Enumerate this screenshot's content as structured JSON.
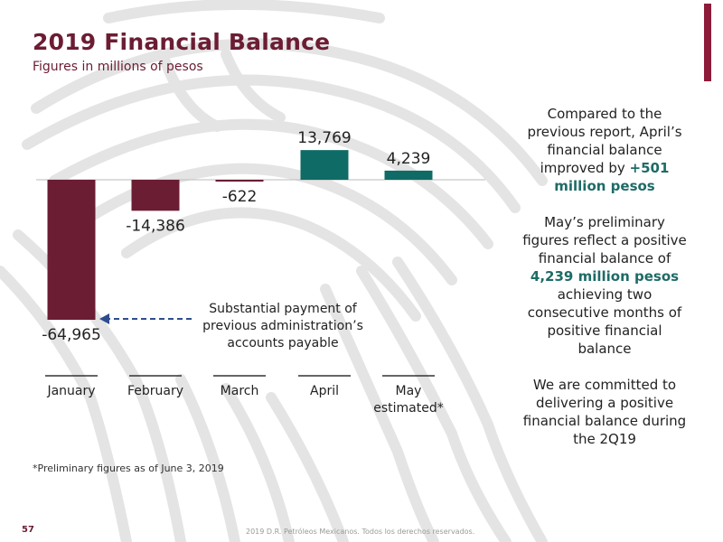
{
  "slide": {
    "title": "2019 Financial Balance",
    "subtitle": "Figures in millions of pesos",
    "annotation": "Substantial payment of previous administration’s accounts payable",
    "footnote": "*Preliminary figures as of June 3, 2019",
    "page_number": "57",
    "copyright": "2019 D.R. Petróleos Mexicanos. Todos los derechos reservados."
  },
  "side_panel": {
    "p1_text": "Compared to the previous report, April’s financial balance improved by",
    "p1_highlight": "+501 million pesos",
    "p2_text_before": "May’s preliminary figures reflect a positive financial balance of",
    "p2_highlight": "4,239 million pesos",
    "p2_text_after": "achieving two consecutive months of positive financial balance",
    "p3_text": "We are committed to delivering a positive financial balance during the 2Q19"
  },
  "colors": {
    "negative": "#6b1d33",
    "positive": "#0f6b66",
    "accent": "#8c1c3a",
    "arrow": "#2e4d8f",
    "highlight_text": "#1e6b66"
  },
  "chart_data": {
    "type": "bar",
    "categories": [
      "January",
      "February",
      "March",
      "April",
      "May estimated*"
    ],
    "values": [
      -64965,
      -14386,
      -622,
      13769,
      4239
    ],
    "value_labels": [
      "-64,965",
      "-14,386",
      "-622",
      "13,769",
      "4,239"
    ],
    "title": "2019 Financial Balance",
    "ylabel": "",
    "xlabel": "",
    "grid": false,
    "legend": "none"
  }
}
